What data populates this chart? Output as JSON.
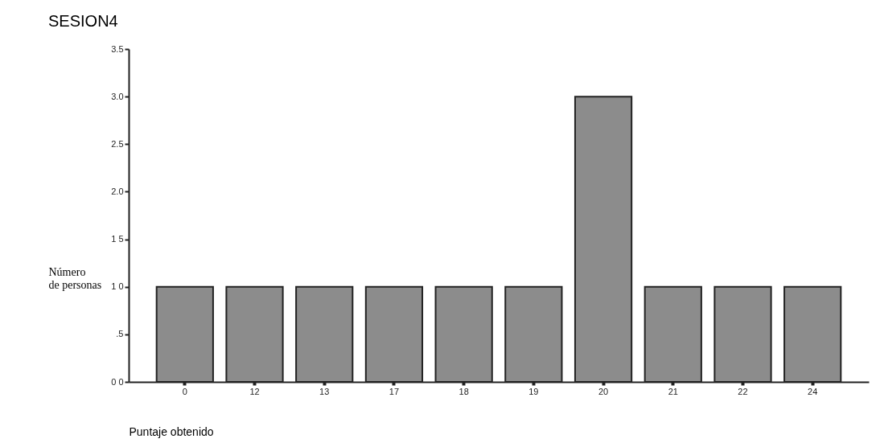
{
  "chart_data": {
    "type": "bar",
    "title": "SESION4",
    "xlabel": "Puntaje obtenido",
    "ylabel": "Número\nde personas",
    "categories": [
      "0",
      "12",
      "13",
      "17",
      "18",
      "19",
      "20",
      "21",
      "22",
      "24"
    ],
    "values": [
      1,
      1,
      1,
      1,
      1,
      1,
      3,
      1,
      1,
      1
    ],
    "color": "#8c8c8c",
    "ylim": [
      0,
      3.5
    ],
    "yticks": [
      {
        "value": 0,
        "label": "0 0"
      },
      {
        "value": 0.5,
        "label": ".5"
      },
      {
        "value": 1.0,
        "label": "1 0"
      },
      {
        "value": 1.5,
        "label": "1 5"
      },
      {
        "value": 2.0,
        "label": "2.0"
      },
      {
        "value": 2.5,
        "label": "2.5"
      },
      {
        "value": 3.0,
        "label": "3.0"
      },
      {
        "value": 3.5,
        "label": "3.5"
      }
    ],
    "grid": false
  }
}
